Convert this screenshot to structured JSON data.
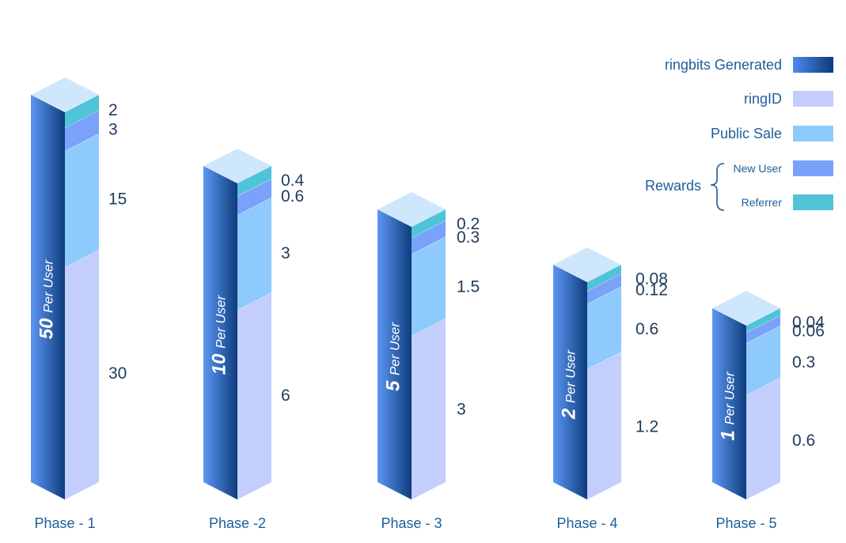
{
  "chart_data": {
    "type": "bar",
    "stacked": true,
    "style": "isometric-3d",
    "categories": [
      "Phase - 1",
      "Phase -2",
      "Phase - 3",
      "Phase - 4",
      "Phase - 5"
    ],
    "per_user": [
      {
        "number": "50",
        "text": "Per User"
      },
      {
        "number": "10",
        "text": "Per User"
      },
      {
        "number": "5",
        "text": "Per User"
      },
      {
        "number": "2",
        "text": "Per User"
      },
      {
        "number": "1",
        "text": "Per User"
      }
    ],
    "series": [
      {
        "key": "ringid",
        "name": "ringID",
        "color": "#c3cefd",
        "values": [
          30,
          6,
          3,
          1.2,
          0.6
        ],
        "labels": [
          "30",
          "6",
          "3",
          "1.2",
          "0.6"
        ]
      },
      {
        "key": "public_sale",
        "name": "Public Sale",
        "color": "#8ecafc",
        "values": [
          15,
          3,
          1.5,
          0.6,
          0.3
        ],
        "labels": [
          "15",
          "3",
          "1.5",
          "0.6",
          "0.3"
        ]
      },
      {
        "key": "new_user",
        "name": "New User",
        "color": "#7aa2fb",
        "values": [
          3,
          0.6,
          0.3,
          0.12,
          0.06
        ],
        "labels": [
          "3",
          "0.6",
          "0.3",
          "0.12",
          "0.06"
        ]
      },
      {
        "key": "referrer",
        "name": "Referrer",
        "color": "#4fc4d6",
        "values": [
          2,
          0.4,
          0.2,
          0.08,
          0.04
        ],
        "labels": [
          "2",
          "0.4",
          "0.2",
          "0.08",
          "0.04"
        ]
      }
    ],
    "legend": {
      "position": "top-right",
      "items": [
        {
          "label": "ringbits Generated",
          "color_from": "#4d8af0",
          "color_to": "#0c3a78"
        },
        {
          "label": "ringID",
          "color": "#c3cefd"
        },
        {
          "label": "Public Sale",
          "color": "#8ecafc"
        }
      ],
      "group": {
        "label": "Rewards",
        "items": [
          {
            "label": "New User",
            "color": "#7aa2fb"
          },
          {
            "label": "Referrer",
            "color": "#4fc4d6"
          }
        ]
      }
    },
    "colors": {
      "front_gradient_from": "#5d97f3",
      "front_gradient_to": "#0d3d7d",
      "top_face": "#cfe7fd",
      "value_text": "#1f3b5c",
      "label_text": "#1d5e9a"
    }
  }
}
